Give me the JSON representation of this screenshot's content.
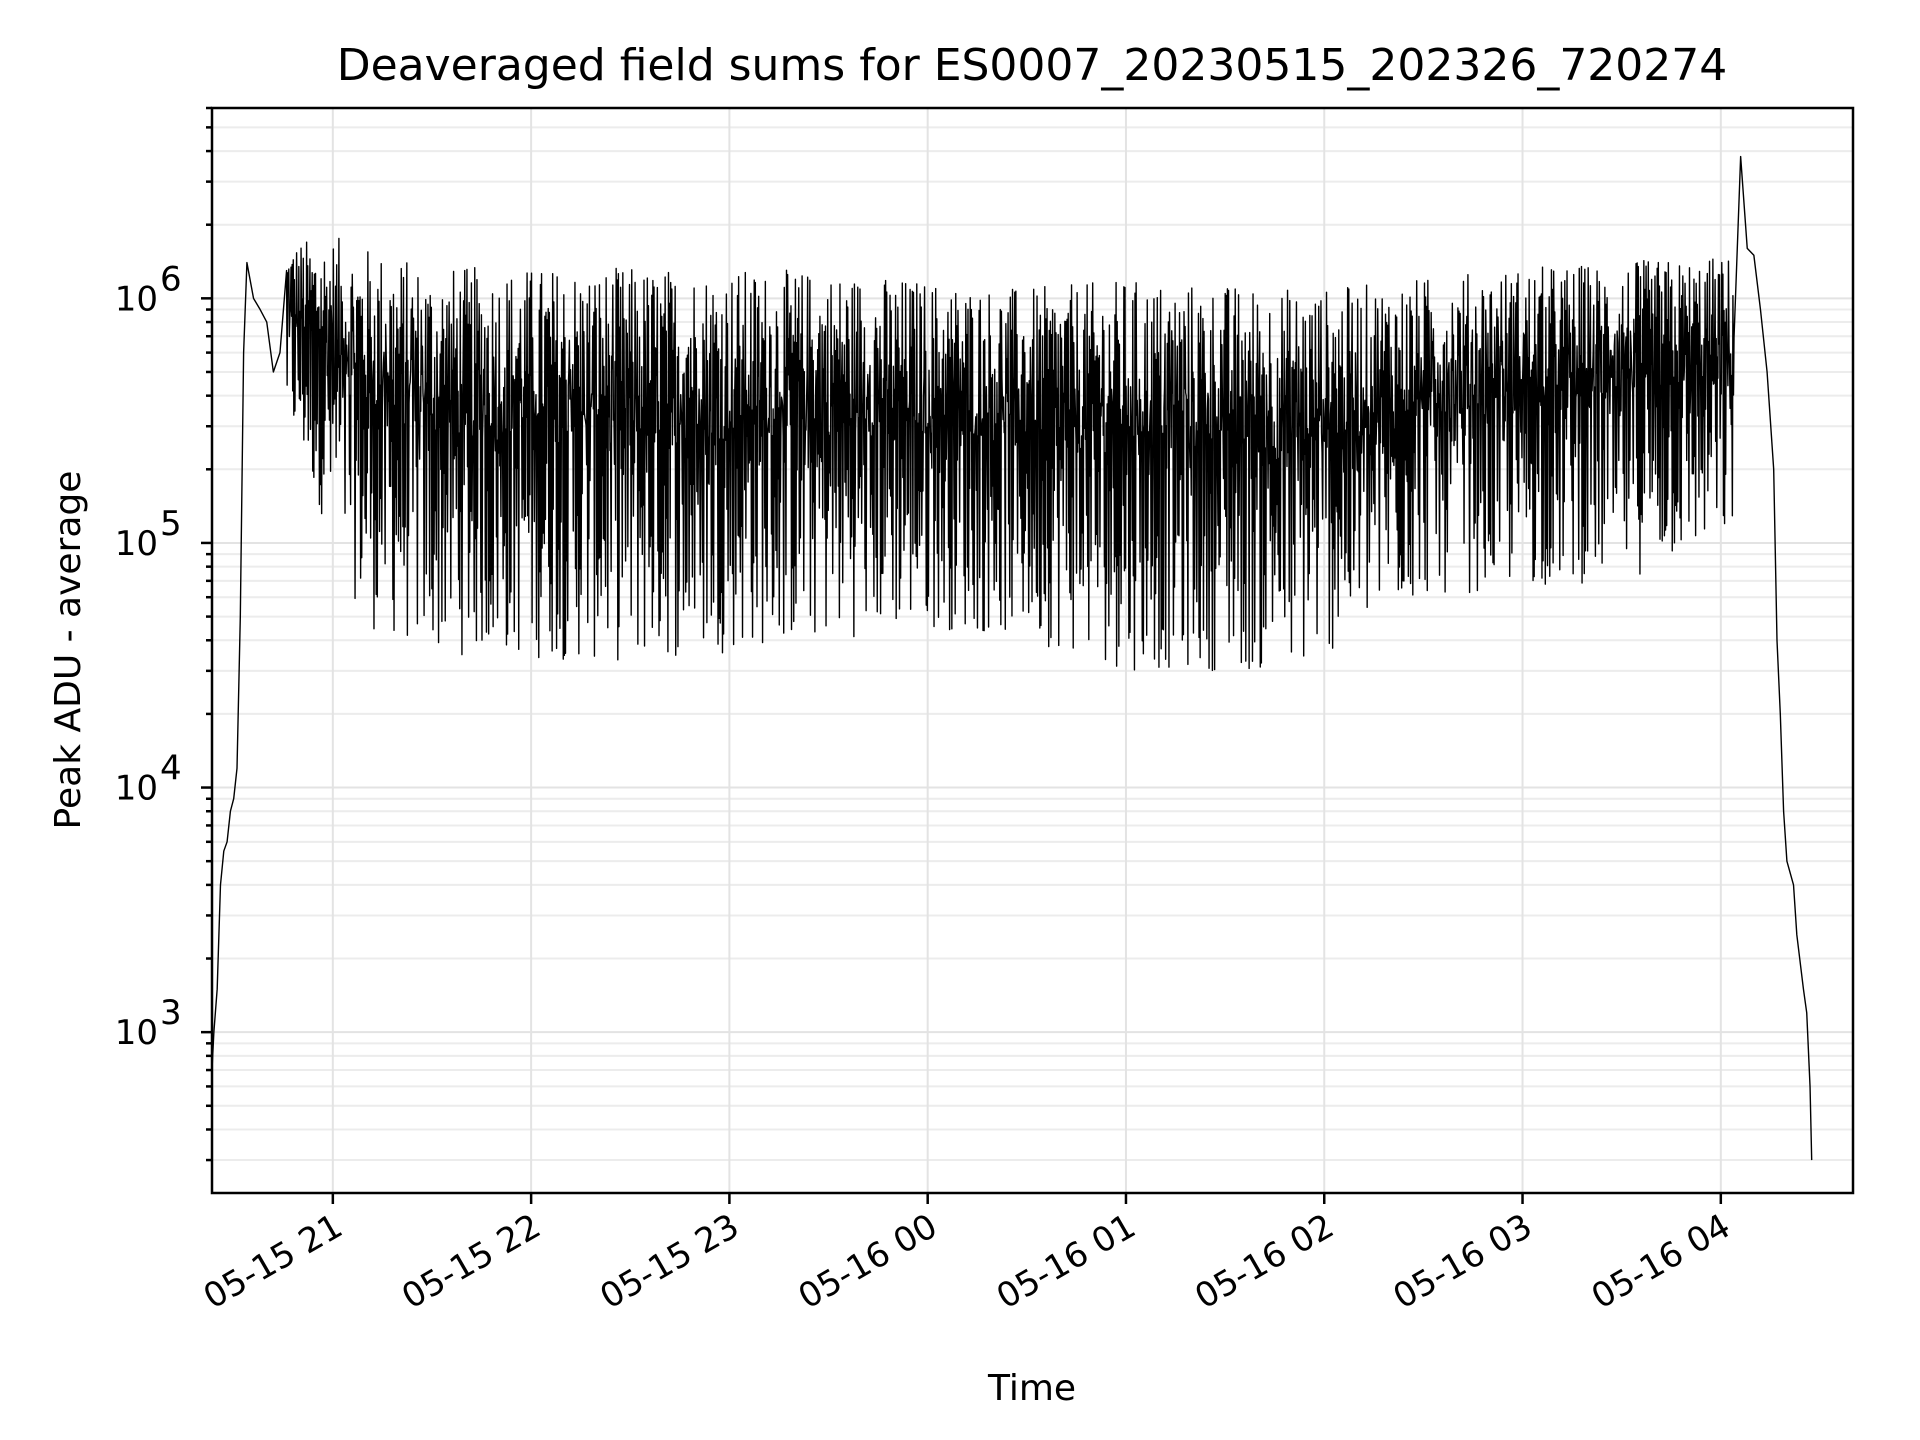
{
  "chart_data": {
    "type": "line",
    "title": "Deaveraged field sums for ES0007_20230515_202326_720274",
    "xlabel": "Time",
    "ylabel": "Peak ADU - average",
    "yscale": "log",
    "ylim": [
      220,
      6000000
    ],
    "xlim": [
      "2023-05-15 20:23:26",
      "2023-05-16 04:40:00"
    ],
    "grid": true,
    "grid_minor": true,
    "line_color": "#000000",
    "y_ticks": [
      {
        "value": 1000,
        "base": "10",
        "exp": "3"
      },
      {
        "value": 10000,
        "base": "10",
        "exp": "4"
      },
      {
        "value": 100000,
        "base": "10",
        "exp": "5"
      },
      {
        "value": 1000000,
        "base": "10",
        "exp": "6"
      }
    ],
    "x_ticks": [
      {
        "value": "2023-05-15 21:00",
        "label": "05-15 21"
      },
      {
        "value": "2023-05-15 22:00",
        "label": "05-15 22"
      },
      {
        "value": "2023-05-15 23:00",
        "label": "05-15 23"
      },
      {
        "value": "2023-05-16 00:00",
        "label": "05-16 00"
      },
      {
        "value": "2023-05-16 01:00",
        "label": "05-16 01"
      },
      {
        "value": "2023-05-16 02:00",
        "label": "05-16 02"
      },
      {
        "value": "2023-05-16 03:00",
        "label": "05-16 03"
      },
      {
        "value": "2023-05-16 04:00",
        "label": "05-16 04"
      }
    ],
    "series": [
      {
        "points": [
          [
            "2023-05-15 20:23:26",
            700
          ],
          [
            "2023-05-15 20:24:00",
            1000
          ],
          [
            "2023-05-15 20:25:00",
            1500
          ],
          [
            "2023-05-15 20:26:00",
            4000
          ],
          [
            "2023-05-15 20:27:00",
            5500
          ],
          [
            "2023-05-15 20:28:00",
            6000
          ],
          [
            "2023-05-15 20:29:00",
            8000
          ],
          [
            "2023-05-15 20:30:00",
            9000
          ],
          [
            "2023-05-15 20:31:00",
            12000
          ],
          [
            "2023-05-15 20:32:00",
            50000
          ],
          [
            "2023-05-15 20:33:00",
            600000
          ],
          [
            "2023-05-15 20:34:00",
            1400000
          ],
          [
            "2023-05-15 20:36:00",
            1000000
          ],
          [
            "2023-05-15 20:38:00",
            900000
          ],
          [
            "2023-05-15 20:40:00",
            800000
          ],
          [
            "2023-05-15 20:42:00",
            500000
          ],
          [
            "2023-05-15 20:44:00",
            600000
          ],
          [
            "2023-05-15 20:46:00",
            1500000
          ],
          [
            "2023-05-15 20:50:00",
            1600000
          ],
          [
            "2023-05-15 20:55:00",
            1700000
          ],
          [
            "2023-05-15 21:00:00",
            1600000
          ],
          [
            "2023-05-15 21:10:00",
            1400000
          ],
          [
            "2023-05-15 21:30:00",
            1300000
          ],
          [
            "2023-05-15 22:00:00",
            1300000
          ],
          [
            "2023-05-15 22:30:00",
            1300000
          ],
          [
            "2023-05-15 23:00:00",
            1250000
          ],
          [
            "2023-05-15 23:30:00",
            1200000
          ],
          [
            "2023-05-16 00:00:00",
            1150000
          ],
          [
            "2023-05-16 00:30:00",
            1000000
          ],
          [
            "2023-05-16 00:40:00",
            800000
          ],
          [
            "2023-05-16 01:00:00",
            900000
          ],
          [
            "2023-05-16 01:30:00",
            1000000
          ],
          [
            "2023-05-16 02:00:00",
            1000000
          ],
          [
            "2023-05-16 02:30:00",
            1100000
          ],
          [
            "2023-05-16 03:00:00",
            1200000
          ],
          [
            "2023-05-16 03:30:00",
            1250000
          ],
          [
            "2023-05-16 03:55:00",
            1300000
          ],
          [
            "2023-05-16 04:04:00",
            2200000
          ],
          [
            "2023-05-16 04:06:00",
            3800000
          ],
          [
            "2023-05-16 04:08:00",
            1600000
          ],
          [
            "2023-05-16 04:10:00",
            1500000
          ],
          [
            "2023-05-16 04:12:00",
            900000
          ],
          [
            "2023-05-16 04:14:00",
            500000
          ],
          [
            "2023-05-16 04:16:00",
            200000
          ],
          [
            "2023-05-16 04:17:00",
            40000
          ],
          [
            "2023-05-16 04:18:00",
            20000
          ],
          [
            "2023-05-16 04:19:00",
            8000
          ],
          [
            "2023-05-16 04:20:00",
            5000
          ],
          [
            "2023-05-16 04:22:00",
            4000
          ],
          [
            "2023-05-16 04:23:00",
            2500
          ],
          [
            "2023-05-16 04:25:00",
            1500
          ],
          [
            "2023-05-16 04:26:00",
            1200
          ],
          [
            "2023-05-16 04:27:00",
            600
          ],
          [
            "2023-05-16 04:27:30",
            300
          ]
        ],
        "dense_band": {
          "x_range": [
            "2023-05-15 20:46:00",
            "2023-05-16 04:04:00"
          ],
          "upper": [
            [
              "2023-05-15 20:46:00",
              1700000
            ],
            [
              "2023-05-15 21:00:00",
              1800000
            ],
            [
              "2023-05-15 21:30:00",
              1350000
            ],
            [
              "2023-05-15 22:30:00",
              1350000
            ],
            [
              "2023-05-15 23:30:00",
              1300000
            ],
            [
              "2023-05-16 00:30:00",
              1100000
            ],
            [
              "2023-05-16 01:00:00",
              1200000
            ],
            [
              "2023-05-16 02:00:00",
              1100000
            ],
            [
              "2023-05-16 03:00:00",
              1350000
            ],
            [
              "2023-05-16 04:04:00",
              1500000
            ]
          ],
          "lower": [
            [
              "2023-05-15 20:46:00",
              300000
            ],
            [
              "2023-05-15 21:00:00",
              100000
            ],
            [
              "2023-05-15 21:10:00",
              45000
            ],
            [
              "2023-05-15 21:30:00",
              35000
            ],
            [
              "2023-05-15 22:30:00",
              32000
            ],
            [
              "2023-05-15 23:30:00",
              40000
            ],
            [
              "2023-05-16 00:00:00",
              45000
            ],
            [
              "2023-05-16 00:30:00",
              40000
            ],
            [
              "2023-05-16 01:00:00",
              30000
            ],
            [
              "2023-05-16 01:30:00",
              30000
            ],
            [
              "2023-05-16 01:50:00",
              28000
            ],
            [
              "2023-05-16 02:30:00",
              60000
            ],
            [
              "2023-05-16 03:00:00",
              65000
            ],
            [
              "2023-05-16 03:30:00",
              70000
            ],
            [
              "2023-05-16 04:04:00",
              100000
            ]
          ]
        }
      }
    ]
  }
}
